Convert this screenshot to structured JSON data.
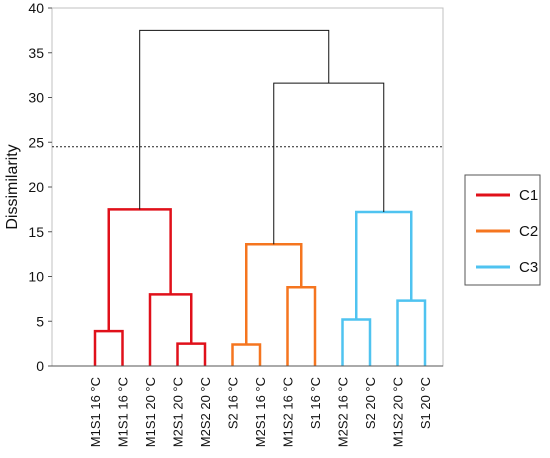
{
  "chart_data": {
    "type": "dendrogram",
    "ylabel": "Dissimilarity",
    "ylim": [
      0,
      40
    ],
    "yticks": [
      0,
      5,
      10,
      15,
      20,
      25,
      30,
      35,
      40
    ],
    "cut_line": 24.5,
    "leaves": [
      "M1S1 16 °C",
      "M1S1 16 °C",
      "M1S1 20 °C",
      "M2S1 20 °C",
      "M2S2 20 °C",
      "S2 16 °C",
      "M2S1 16 °C",
      "M1S2 16 °C",
      "S1 16 °C",
      "M2S2 16 °C",
      "S2 20 °C",
      "M1S2 20 °C",
      "S1 20 °C"
    ],
    "clusters": [
      {
        "name": "C1",
        "color": "#e0101a"
      },
      {
        "name": "C2",
        "color": "#f5751f"
      },
      {
        "name": "C3",
        "color": "#4fc3f0"
      }
    ],
    "merges": [
      {
        "id": "a",
        "left": 0,
        "right": 1,
        "height": 3.9,
        "cluster": 0
      },
      {
        "id": "b",
        "left": 3,
        "right": 4,
        "height": 2.5,
        "cluster": 0
      },
      {
        "id": "c",
        "left": 2,
        "right": "b",
        "height": 8.0,
        "cluster": 0
      },
      {
        "id": "d",
        "left": "a",
        "right": "c",
        "height": 17.5,
        "cluster": 0
      },
      {
        "id": "e",
        "left": 5,
        "right": 6,
        "height": 2.4,
        "cluster": 1
      },
      {
        "id": "f",
        "left": 7,
        "right": 8,
        "height": 8.8,
        "cluster": 1
      },
      {
        "id": "g",
        "left": "e",
        "right": "f",
        "height": 13.6,
        "cluster": 1
      },
      {
        "id": "h",
        "left": 9,
        "right": 10,
        "height": 5.2,
        "cluster": 2
      },
      {
        "id": "i",
        "left": 11,
        "right": 12,
        "height": 7.3,
        "cluster": 2
      },
      {
        "id": "j",
        "left": "h",
        "right": "i",
        "height": 17.2,
        "cluster": 2
      },
      {
        "id": "k",
        "left": "g",
        "right": "j",
        "height": 31.6,
        "cluster": null
      },
      {
        "id": "l",
        "left": "d",
        "right": "k",
        "height": 37.5,
        "cluster": null
      }
    ],
    "legend_position": "right"
  }
}
